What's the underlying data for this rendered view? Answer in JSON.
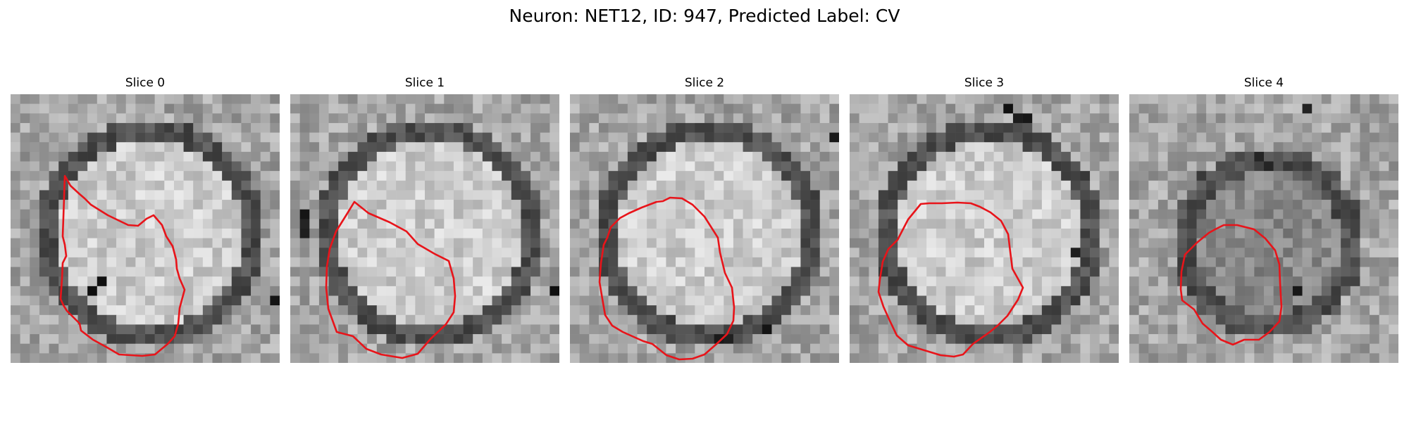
{
  "figure": {
    "title": "Neuron: NET12, ID: 947, Predicted Label: CV",
    "contour_color": "#e8141a",
    "colormap": "grayscale"
  },
  "panels": [
    {
      "title": "Slice 0",
      "dark_cells": [
        [
          28,
          20
        ],
        [
          27,
          21
        ],
        [
          8,
          20
        ],
        [
          9,
          19
        ]
      ]
    },
    {
      "title": "Slice 1",
      "dark_cells": [
        [
          1,
          12
        ],
        [
          1,
          13
        ],
        [
          1,
          14
        ],
        [
          27,
          20
        ],
        [
          28,
          21
        ]
      ]
    },
    {
      "title": "Slice 2",
      "dark_cells": [
        [
          15,
          25
        ],
        [
          16,
          25
        ],
        [
          20,
          24
        ],
        [
          27,
          4
        ]
      ]
    },
    {
      "title": "Slice 3",
      "dark_cells": [
        [
          16,
          1
        ],
        [
          17,
          2
        ],
        [
          18,
          2
        ],
        [
          23,
          16
        ]
      ]
    },
    {
      "title": "Slice 4",
      "dark_cells": [
        [
          18,
          1
        ],
        [
          17,
          20
        ],
        [
          13,
          6
        ],
        [
          14,
          7
        ]
      ]
    }
  ]
}
